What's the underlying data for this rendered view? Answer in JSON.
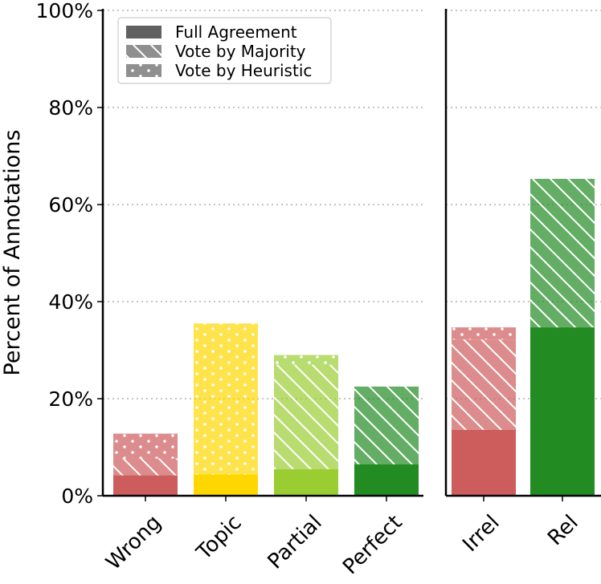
{
  "chart_data": {
    "type": "bar",
    "stacked": true,
    "ylabel": "Percent of Annotations",
    "ylim": [
      0,
      100
    ],
    "yticks": [
      0,
      20,
      40,
      60,
      80,
      100
    ],
    "ytick_labels": [
      "0%",
      "20%",
      "40%",
      "60%",
      "80%",
      "100%"
    ],
    "grid": "horizontal-dotted",
    "legend": {
      "placement": "top-left",
      "entries": [
        {
          "label": "Full Agreement",
          "pattern": "solid"
        },
        {
          "label": "Vote by Majority",
          "pattern": "hatch"
        },
        {
          "label": "Vote by Heuristic",
          "pattern": "dots"
        }
      ]
    },
    "panels": [
      {
        "categories": [
          "Wrong",
          "Topic",
          "Partial",
          "Perfect"
        ],
        "colors": [
          "#cd5c5c",
          "#ffd700",
          "#9acd32",
          "#228b22"
        ],
        "series": [
          {
            "name": "Full Agreement",
            "values": [
              4.2,
              4.4,
              5.5,
              6.5
            ]
          },
          {
            "name": "Vote by Majority",
            "values": [
              3.5,
              0.0,
              21.5,
              16.0
            ]
          },
          {
            "name": "Vote by Heuristic",
            "values": [
              5.1,
              31.1,
              2.0,
              0.0
            ]
          }
        ]
      },
      {
        "categories": [
          "Irrel",
          "Rel"
        ],
        "colors": [
          "#cd5c5c",
          "#228b22"
        ],
        "series": [
          {
            "name": "Full Agreement",
            "values": [
              13.6,
              34.7
            ]
          },
          {
            "name": "Vote by Majority",
            "values": [
              18.6,
              30.6
            ]
          },
          {
            "name": "Vote by Heuristic",
            "values": [
              2.5,
              0.0
            ]
          }
        ]
      }
    ]
  }
}
